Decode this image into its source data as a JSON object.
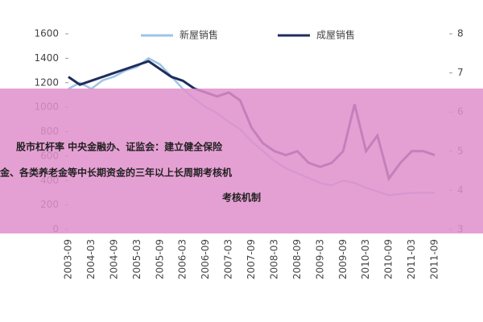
{
  "chart_data": {
    "type": "line",
    "categories": [
      "2003-09",
      null,
      "2004-03",
      null,
      "2004-09",
      null,
      "2005-03",
      null,
      "2005-09",
      null,
      "2006-03",
      null,
      "2006-09",
      null,
      "2007-03",
      null,
      "2007-09",
      null,
      "2008-03",
      null,
      "2008-09",
      null,
      "2009-03",
      null,
      "2009-09",
      null,
      "2010-03",
      null,
      "2010-09",
      null,
      "2011-03",
      null,
      "2011-09"
    ],
    "series": [
      {
        "name": "新屋销售",
        "color": "#9ec3e6",
        "values": [
          1150,
          1200,
          1150,
          1220,
          1250,
          1300,
          1330,
          1400,
          1350,
          1250,
          1150,
          1070,
          1000,
          950,
          880,
          820,
          720,
          640,
          560,
          500,
          460,
          420,
          380,
          360,
          400,
          380,
          340,
          310,
          280,
          290,
          300,
          300,
          300
        ]
      },
      {
        "name": "成屋销售",
        "color": "#1f2d5c",
        "axis": "y2",
        "values": [
          6.9,
          6.7,
          6.8,
          6.9,
          7.0,
          7.1,
          7.2,
          7.3,
          7.1,
          6.9,
          6.8,
          6.6,
          6.5,
          6.4,
          6.5,
          6.3,
          5.6,
          5.2,
          5.0,
          4.9,
          5.0,
          4.7,
          4.6,
          4.7,
          5.0,
          6.2,
          5.0,
          5.4,
          4.3,
          4.7,
          5.0,
          5.0,
          4.9
        ]
      }
    ],
    "ylim": [
      0,
      1600
    ],
    "yticks": [
      0,
      200,
      400,
      600,
      800,
      1000,
      1200,
      1400,
      1600
    ],
    "y2lim": [
      3,
      8
    ],
    "y2ticks": [
      3,
      4,
      5,
      6,
      7,
      8
    ],
    "annotations": [
      "股市杠杆率 中央金融办、证监会：建立健全保险",
      "金、各类养老金等中长期资金的三年以上长周期考核机",
      "考核机制"
    ]
  }
}
